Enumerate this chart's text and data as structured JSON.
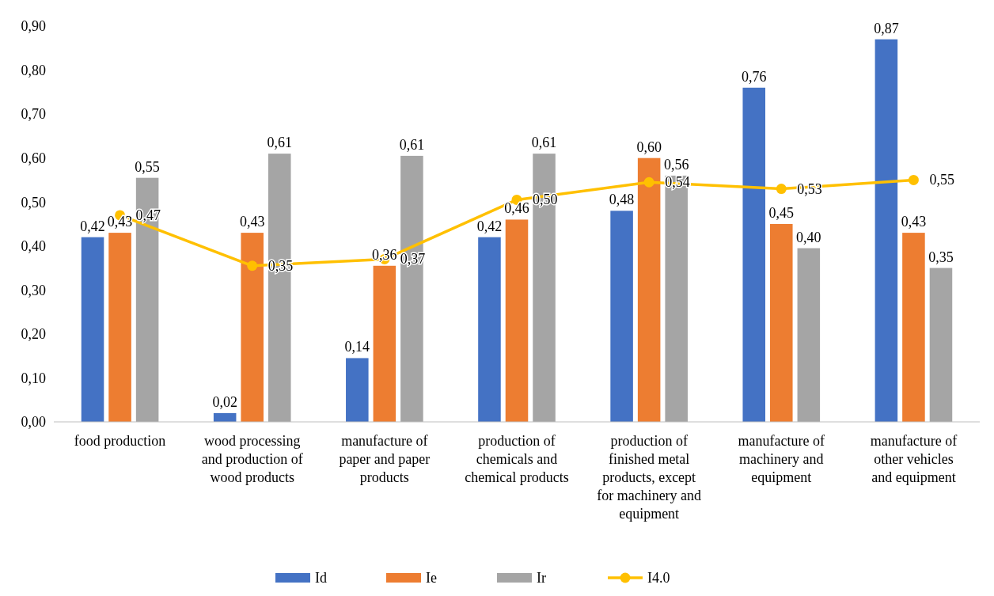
{
  "chart_data": {
    "type": "bar",
    "categories": [
      "food production",
      "wood processing and production of wood products",
      "manufacture of paper and paper products",
      "production of chemicals and chemical products",
      "production of finished metal products, except for machinery and equipment",
      "manufacture of machinery and equipment",
      "manufacture of other vehicles and equipment"
    ],
    "series": [
      {
        "name": "Id",
        "color": "#4472c4",
        "values": [
          0.42,
          0.02,
          0.145,
          0.42,
          0.48,
          0.76,
          0.87
        ],
        "value_labels": [
          "0,42",
          "0,02",
          "0,14",
          "0,42",
          "0,48",
          "0,76",
          "0,87"
        ]
      },
      {
        "name": "Ie",
        "color": "#ed7d31",
        "values": [
          0.43,
          0.43,
          0.355,
          0.46,
          0.6,
          0.45,
          0.43
        ],
        "value_labels": [
          "0,43",
          "0,43",
          "0,36",
          "0,46",
          "0,60",
          "0,45",
          "0,43"
        ]
      },
      {
        "name": "Ir",
        "color": "#a5a5a5",
        "values": [
          0.555,
          0.61,
          0.605,
          0.61,
          0.56,
          0.395,
          0.35
        ],
        "value_labels": [
          "0,55",
          "0,61",
          "0,61",
          "0,61",
          "0,56",
          "0,40",
          "0,35"
        ]
      },
      {
        "name": "I4.0",
        "type": "line",
        "color": "#ffc000",
        "marker": "circle",
        "values": [
          0.47,
          0.355,
          0.37,
          0.505,
          0.545,
          0.53,
          0.55
        ],
        "value_labels": [
          "0,47",
          "0,35",
          "0,37",
          "0,50",
          "0,54",
          "0,53",
          "0,55"
        ]
      }
    ],
    "ylim": [
      0,
      0.9
    ],
    "yticks": [
      {
        "value": 0,
        "label": "0,00"
      },
      {
        "value": 0.1,
        "label": "0,10"
      },
      {
        "value": 0.2,
        "label": "0,20"
      },
      {
        "value": 0.3,
        "label": "0,30"
      },
      {
        "value": 0.4,
        "label": "0,40"
      },
      {
        "value": 0.5,
        "label": "0,50"
      },
      {
        "value": 0.6,
        "label": "0,60"
      },
      {
        "value": 0.7,
        "label": "0,70"
      },
      {
        "value": 0.8,
        "label": "0,80"
      },
      {
        "value": 0.9,
        "label": "0,90"
      }
    ],
    "legend": "bottom"
  }
}
